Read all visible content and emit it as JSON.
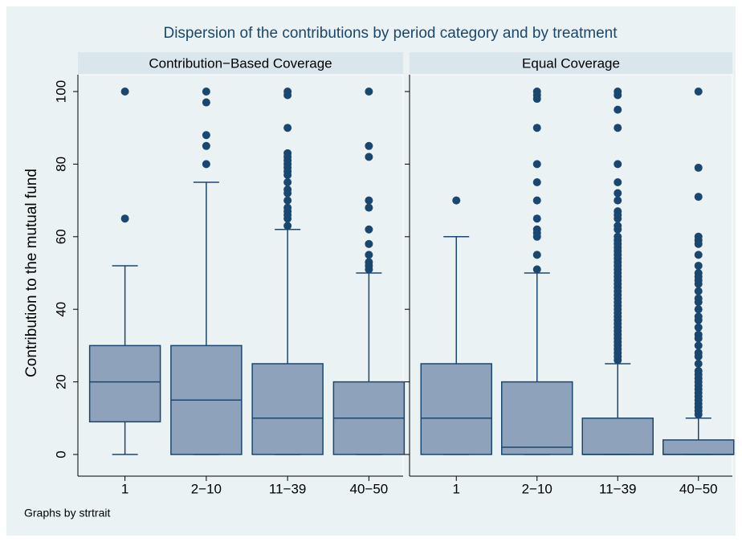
{
  "chart_data": {
    "type": "box",
    "title": "Dispersion of the contributions by period category and by treatment",
    "ylabel": "Contribution to the mutual fund",
    "note": "Graphs by strtrait",
    "ylim": [
      0,
      100
    ],
    "yticks": [
      0,
      20,
      40,
      60,
      80,
      100
    ],
    "color": "#8ea3bb",
    "line_color": "#1a476f",
    "panels": [
      {
        "title": "Contribution−Based Coverage",
        "categories": [
          "1",
          "2−10",
          "11−39",
          "40−50"
        ],
        "boxes": [
          {
            "whisker_low": 0,
            "q1": 9,
            "median": 20,
            "q3": 30,
            "whisker_high": 52,
            "outliers": [
              65,
              100
            ]
          },
          {
            "whisker_low": 0,
            "q1": 0,
            "median": 15,
            "q3": 30,
            "whisker_high": 75,
            "outliers": [
              80,
              85,
              88,
              97,
              100
            ]
          },
          {
            "whisker_low": 0,
            "q1": 0,
            "median": 10,
            "q3": 25,
            "whisker_high": 62,
            "outliers": [
              63,
              65,
              66,
              67,
              68,
              70,
              72,
              73,
              75,
              77,
              78,
              79,
              80,
              81,
              82,
              83,
              90,
              99,
              100
            ]
          },
          {
            "whisker_low": 0,
            "q1": 0,
            "median": 10,
            "q3": 20,
            "whisker_high": 50,
            "outliers": [
              51,
              52,
              53,
              55,
              58,
              62,
              68,
              70,
              82,
              85,
              100
            ]
          }
        ]
      },
      {
        "title": "Equal Coverage",
        "categories": [
          "1",
          "2−10",
          "11−39",
          "40−50"
        ],
        "boxes": [
          {
            "whisker_low": 0,
            "q1": 0,
            "median": 10,
            "q3": 25,
            "whisker_high": 60,
            "outliers": [
              70
            ]
          },
          {
            "whisker_low": 0,
            "q1": 0,
            "median": 2,
            "q3": 20,
            "whisker_high": 50,
            "outliers": [
              51,
              55,
              60,
              61,
              62,
              65,
              70,
              75,
              80,
              90,
              98,
              99,
              100
            ]
          },
          {
            "whisker_low": 0,
            "q1": 0,
            "median": 0,
            "q3": 10,
            "whisker_high": 25,
            "outliers": [
              26,
              27,
              28,
              29,
              30,
              31,
              32,
              33,
              34,
              35,
              36,
              37,
              38,
              39,
              40,
              41,
              42,
              43,
              44,
              45,
              46,
              47,
              48,
              49,
              50,
              51,
              52,
              53,
              54,
              55,
              56,
              57,
              58,
              59,
              60,
              62,
              63,
              65,
              66,
              67,
              70,
              72,
              75,
              80,
              90,
              95,
              99,
              100
            ]
          },
          {
            "whisker_low": 0,
            "q1": 0,
            "median": 0,
            "q3": 4,
            "whisker_high": 10,
            "outliers": [
              11,
              12,
              13,
              14,
              15,
              16,
              17,
              18,
              19,
              20,
              21,
              22,
              23,
              25,
              27,
              28,
              30,
              32,
              33,
              35,
              37,
              38,
              40,
              42,
              43,
              45,
              47,
              48,
              49,
              50,
              52,
              55,
              58,
              59,
              60,
              71,
              79,
              100
            ]
          }
        ]
      }
    ]
  }
}
